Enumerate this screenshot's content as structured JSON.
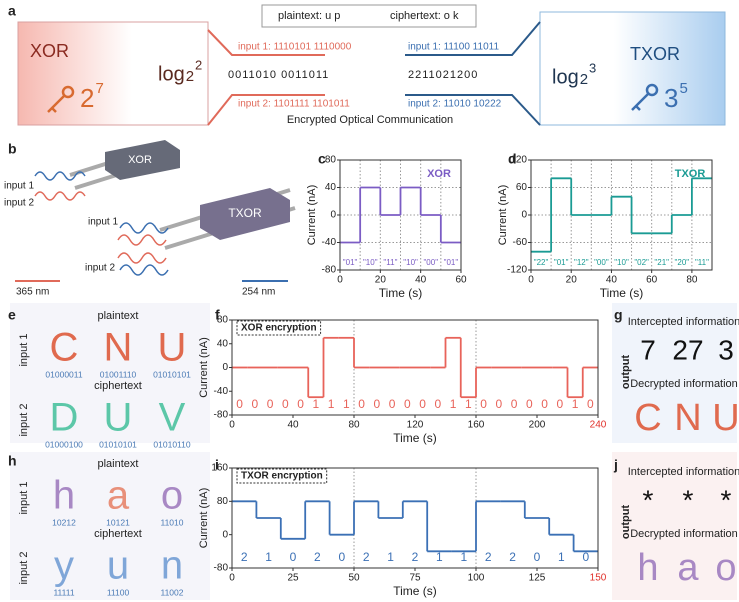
{
  "panel_labels": [
    "a",
    "b",
    "c",
    "d",
    "e",
    "f",
    "g",
    "h",
    "i",
    "j"
  ],
  "panel_a": {
    "left": {
      "title": "XOR",
      "key_base": "2",
      "key_exp": "7",
      "log": "log",
      "log_base": "2",
      "log_exp": "2"
    },
    "right": {
      "title": "TXOR",
      "key_base": "3",
      "key_exp": "5",
      "log": "log",
      "log_base": "2",
      "log_exp": "3"
    },
    "plaintext": "plaintext: u p",
    "ciphertext": "ciphertext: o k",
    "xor_input1": "input 1: 1110101 1110000",
    "xor_result": "0011010 0011011",
    "xor_input2": "input 2: 1101111 1101011",
    "txor_input1": "input 1: 11100 11011",
    "txor_result": "2211021200",
    "txor_input2": "input 2: 11010 10222",
    "caption": "Encrypted Optical Communication"
  },
  "panel_b": {
    "device1": "XOR",
    "device2": "TXOR",
    "input1a": "input 1",
    "input2a": "input 2",
    "input1b": "input 1",
    "input2b": "input 2",
    "wl1": "365 nm",
    "wl2": "254 nm"
  },
  "panel_e": {
    "top_title": "plaintext",
    "top_row": "input 1",
    "top_letters": [
      "C",
      "N",
      "U"
    ],
    "top_colors": [
      "#e06a4e",
      "#e06a4e",
      "#e06a4e"
    ],
    "top_codes": [
      "01000011",
      "01001110",
      "01010101"
    ],
    "bottom_title": "ciphertext",
    "bottom_row": "input 2",
    "bottom_letters": [
      "D",
      "U",
      "V"
    ],
    "bottom_colors": [
      "#5cc7a8",
      "#5cc7a8",
      "#5cc7a8"
    ],
    "bottom_codes": [
      "01000100",
      "01010101",
      "01010110"
    ]
  },
  "panel_h": {
    "top_title": "plaintext",
    "top_row": "input 1",
    "top_letters": [
      "h",
      "a",
      "o"
    ],
    "top_colors": [
      "#a888c4",
      "#e8907a",
      "#a888c4"
    ],
    "top_codes": [
      "10212",
      "10121",
      "11010"
    ],
    "bottom_title": "ciphertext",
    "bottom_row": "input 2",
    "bottom_letters": [
      "y",
      "u",
      "n"
    ],
    "bottom_colors": [
      "#7fa6d8",
      "#7fa6d8",
      "#7fa6d8"
    ],
    "bottom_codes": [
      "11111",
      "11100",
      "11002"
    ]
  },
  "panel_g": {
    "row": "output",
    "top_title": "Intercepted information",
    "top_items": [
      "7",
      "27",
      "3"
    ],
    "bottom_title": "Decrypted information",
    "bottom_items": [
      "C",
      "N",
      "U"
    ],
    "bottom_colors": [
      "#e06a4e",
      "#e06a4e",
      "#e06a4e"
    ]
  },
  "panel_j": {
    "row": "output",
    "top_title": "Intercepted information",
    "top_items": [
      "*",
      "*",
      "*"
    ],
    "bottom_title": "Decrypted information",
    "bottom_items": [
      "h",
      "a",
      "o"
    ],
    "bottom_colors": [
      "#a888c4",
      "#a888c4",
      "#a888c4"
    ]
  },
  "chart_data": [
    {
      "type": "line",
      "drawstyle": "steps-post",
      "title": "XOR",
      "xlabel": "Time (s)",
      "ylabel": "Current (nA)",
      "x": [
        0,
        10,
        20,
        30,
        40,
        50
      ],
      "series": [
        {
          "color": "#7b5cc4",
          "values": [
            -40,
            40,
            0,
            40,
            0,
            -40
          ]
        }
      ],
      "annotations": [
        "\"01\"",
        "\"10\"",
        "\"11\"",
        "\"10\"",
        "\"00\"",
        "\"01\""
      ],
      "xlim": [
        0,
        60
      ],
      "xticks": [
        0,
        20,
        40,
        60
      ],
      "ylim": [
        -80,
        80
      ],
      "yticks": [
        -80,
        -40,
        0,
        40,
        80
      ],
      "grid": true,
      "vlines": [
        10,
        20,
        30,
        40,
        50
      ]
    },
    {
      "type": "line",
      "drawstyle": "steps-post",
      "title": "TXOR",
      "xlabel": "Time (s)",
      "ylabel": "Current (nA)",
      "x": [
        0,
        10,
        20,
        30,
        40,
        50,
        60,
        70,
        80
      ],
      "series": [
        {
          "color": "#1a9b94",
          "values": [
            -80,
            80,
            0,
            0,
            40,
            -40,
            -40,
            0,
            80
          ]
        }
      ],
      "annotations": [
        "\"22\"",
        "\"01\"",
        "\"12\"",
        "\"00\"",
        "\"10\"",
        "\"02\"",
        "\"21\"",
        "\"20\"",
        "\"11\""
      ],
      "xlim": [
        0,
        90
      ],
      "xticks": [
        0,
        20,
        40,
        60,
        80
      ],
      "ylim": [
        -120,
        120
      ],
      "yticks": [
        -120,
        -60,
        0,
        60,
        120
      ],
      "grid": true,
      "vlines": [
        10,
        20,
        30,
        40,
        50,
        60,
        70,
        80
      ]
    },
    {
      "type": "line",
      "drawstyle": "steps-post",
      "title": "XOR encryption",
      "xlabel": "Time (s)",
      "ylabel": "Current (nA)",
      "x": [
        0,
        10,
        20,
        30,
        40,
        50,
        60,
        70,
        80,
        90,
        100,
        110,
        120,
        130,
        140,
        150,
        160,
        170,
        180,
        190,
        200,
        210,
        220,
        230
      ],
      "series": [
        {
          "color": "#e8635a",
          "values": [
            0,
            0,
            0,
            0,
            0,
            -50,
            50,
            50,
            0,
            0,
            0,
            0,
            0,
            0,
            50,
            -50,
            0,
            0,
            0,
            0,
            0,
            0,
            -50,
            0
          ]
        }
      ],
      "annotations": [
        "0",
        "0",
        "0",
        "0",
        "0",
        "1",
        "1",
        "1",
        "0",
        "0",
        "0",
        "0",
        "0",
        "0",
        "1",
        "1",
        "0",
        "0",
        "0",
        "0",
        "0",
        "0",
        "1",
        "0"
      ],
      "xlim": [
        0,
        240
      ],
      "xticks": [
        0,
        40,
        80,
        120,
        160,
        200,
        240
      ],
      "xtick_colors": [
        "#222",
        "#222",
        "#222",
        "#222",
        "#222",
        "#222",
        "#e0302a"
      ],
      "ylim": [
        -80,
        80
      ],
      "yticks": [
        -80,
        -40,
        0,
        40,
        80
      ],
      "grid": false,
      "vlines": [
        80,
        160
      ]
    },
    {
      "type": "line",
      "drawstyle": "steps-post",
      "title": "TXOR encryption",
      "xlabel": "Time (s)",
      "ylabel": "Current (nA)",
      "x": [
        0,
        10,
        20,
        30,
        40,
        50,
        60,
        70,
        80,
        90,
        100,
        110,
        120,
        130,
        140
      ],
      "series": [
        {
          "color": "#3b70b5",
          "values": [
            80,
            40,
            -10,
            80,
            0,
            80,
            40,
            80,
            -40,
            -40,
            80,
            80,
            40,
            0,
            -40
          ]
        }
      ],
      "annotations": [
        "2",
        "1",
        "0",
        "2",
        "0",
        "2",
        "1",
        "2",
        "1",
        "1",
        "2",
        "2",
        "0",
        "1",
        "0"
      ],
      "xlim": [
        0,
        150
      ],
      "xticks": [
        0,
        25,
        50,
        75,
        100,
        125,
        150
      ],
      "xtick_colors": [
        "#222",
        "#222",
        "#222",
        "#222",
        "#222",
        "#222",
        "#e0302a"
      ],
      "ylim": [
        -80,
        160
      ],
      "yticks": [
        -80,
        0,
        80,
        160
      ],
      "grid": false,
      "vlines": [
        50,
        100
      ]
    }
  ]
}
